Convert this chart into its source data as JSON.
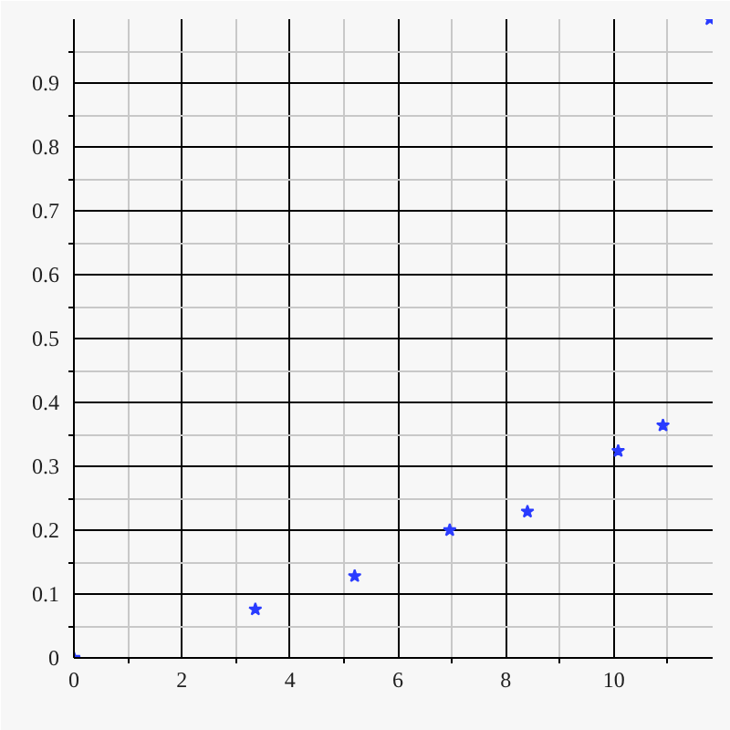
{
  "chart_data": {
    "type": "scatter",
    "marker": "star",
    "grid": true,
    "x": [
      0,
      3.36,
      5.2,
      6.96,
      8.4,
      10.08,
      10.91,
      11.78
    ],
    "series": [
      {
        "color": "#2a3cff",
        "values": [
          0,
          0.076,
          0.128,
          0.2,
          0.229,
          0.324,
          0.364,
          1.0
        ]
      }
    ],
    "xlim": [
      0,
      11.83
    ],
    "ylim": [
      0,
      1.0
    ],
    "xticks": [
      0,
      2,
      4,
      6,
      8,
      10
    ],
    "yticks": [
      0,
      0.1,
      0.2,
      0.3,
      0.4,
      0.5,
      0.6,
      0.7,
      0.8,
      0.9
    ]
  }
}
